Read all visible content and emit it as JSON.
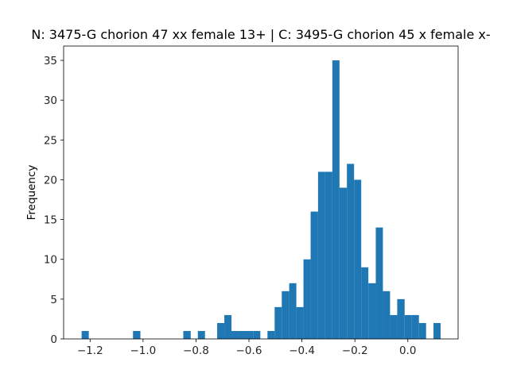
{
  "chart_data": {
    "type": "bar",
    "title": "N: 3475-G chorion 47 xx female 13+ | C: 3495-G chorion 45 x female x-",
    "xlabel": "",
    "ylabel": "Frequency",
    "xlim": [
      -1.3,
      0.19
    ],
    "ylim": [
      0,
      36.8
    ],
    "xticks": [
      -1.2,
      -1.0,
      -0.8,
      -0.6,
      -0.4,
      -0.2,
      0.0
    ],
    "xtick_labels": [
      "−1.2",
      "−1.0",
      "−0.8",
      "−0.6",
      "−0.4",
      "−0.2",
      "0.0"
    ],
    "yticks": [
      0,
      5,
      10,
      15,
      20,
      25,
      30,
      35
    ],
    "ytick_labels": [
      "0",
      "5",
      "10",
      "15",
      "20",
      "25",
      "30",
      "35"
    ],
    "bar_color": "#1f77b4",
    "grid": false,
    "bins": [
      {
        "x0": -1.232,
        "x1": -1.205,
        "count": 1
      },
      {
        "x0": -1.038,
        "x1": -1.01,
        "count": 1
      },
      {
        "x0": -0.848,
        "x1": -0.82,
        "count": 1
      },
      {
        "x0": -0.793,
        "x1": -0.766,
        "count": 1
      },
      {
        "x0": -0.72,
        "x1": -0.693,
        "count": 2
      },
      {
        "x0": -0.693,
        "x1": -0.666,
        "count": 3
      },
      {
        "x0": -0.666,
        "x1": -0.639,
        "count": 1
      },
      {
        "x0": -0.639,
        "x1": -0.612,
        "count": 1
      },
      {
        "x0": -0.612,
        "x1": -0.584,
        "count": 1
      },
      {
        "x0": -0.584,
        "x1": -0.557,
        "count": 1
      },
      {
        "x0": -0.53,
        "x1": -0.503,
        "count": 1
      },
      {
        "x0": -0.503,
        "x1": -0.476,
        "count": 4
      },
      {
        "x0": -0.476,
        "x1": -0.448,
        "count": 6
      },
      {
        "x0": -0.448,
        "x1": -0.421,
        "count": 7
      },
      {
        "x0": -0.421,
        "x1": -0.394,
        "count": 4
      },
      {
        "x0": -0.394,
        "x1": -0.367,
        "count": 10
      },
      {
        "x0": -0.367,
        "x1": -0.339,
        "count": 16
      },
      {
        "x0": -0.339,
        "x1": -0.312,
        "count": 21
      },
      {
        "x0": -0.312,
        "x1": -0.285,
        "count": 21
      },
      {
        "x0": -0.285,
        "x1": -0.258,
        "count": 35
      },
      {
        "x0": -0.258,
        "x1": -0.23,
        "count": 19
      },
      {
        "x0": -0.23,
        "x1": -0.203,
        "count": 22
      },
      {
        "x0": -0.203,
        "x1": -0.176,
        "count": 20
      },
      {
        "x0": -0.176,
        "x1": -0.149,
        "count": 9
      },
      {
        "x0": -0.149,
        "x1": -0.121,
        "count": 7
      },
      {
        "x0": -0.121,
        "x1": -0.094,
        "count": 14
      },
      {
        "x0": -0.094,
        "x1": -0.067,
        "count": 6
      },
      {
        "x0": -0.067,
        "x1": -0.04,
        "count": 3
      },
      {
        "x0": -0.04,
        "x1": -0.012,
        "count": 5
      },
      {
        "x0": -0.012,
        "x1": 0.015,
        "count": 3
      },
      {
        "x0": 0.015,
        "x1": 0.042,
        "count": 3
      },
      {
        "x0": 0.042,
        "x1": 0.069,
        "count": 2
      },
      {
        "x0": 0.097,
        "x1": 0.124,
        "count": 2
      }
    ]
  }
}
